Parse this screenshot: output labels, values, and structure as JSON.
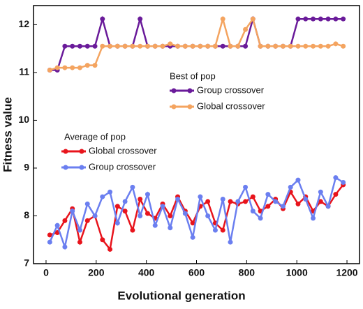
{
  "chart_data": {
    "type": "line",
    "x_label": "Evolutional generation",
    "y_label": "Fitness value",
    "x": [
      15,
      45,
      75,
      105,
      135,
      165,
      195,
      225,
      255,
      285,
      315,
      345,
      375,
      405,
      435,
      465,
      495,
      525,
      555,
      585,
      615,
      645,
      675,
      705,
      735,
      765,
      795,
      825,
      855,
      885,
      915,
      945,
      975,
      1005,
      1035,
      1065,
      1095,
      1125,
      1155,
      1185
    ],
    "legend_titles": [
      "Best of pop",
      "Average of pop"
    ],
    "series": [
      {
        "name": "Group crossover",
        "color": "#6a1b9a",
        "values": [
          11.05,
          11.05,
          11.55,
          11.55,
          11.55,
          11.55,
          11.55,
          12.12,
          11.55,
          11.55,
          11.55,
          11.55,
          12.12,
          11.55,
          11.55,
          11.55,
          11.55,
          11.55,
          11.55,
          11.55,
          11.55,
          11.55,
          11.55,
          11.55,
          11.55,
          11.55,
          11.55,
          12.12,
          11.55,
          11.55,
          11.55,
          11.55,
          11.55,
          12.12,
          12.12,
          12.12,
          12.12,
          12.12,
          12.12,
          12.12
        ]
      },
      {
        "name": "Global crossover",
        "color": "#f4a460",
        "values": [
          11.05,
          11.1,
          11.1,
          11.1,
          11.1,
          11.15,
          11.15,
          11.55,
          11.55,
          11.55,
          11.55,
          11.55,
          11.55,
          11.55,
          11.55,
          11.55,
          11.6,
          11.55,
          11.55,
          11.55,
          11.55,
          11.55,
          11.55,
          12.12,
          11.55,
          11.55,
          11.9,
          12.12,
          11.55,
          11.55,
          11.55,
          11.55,
          11.55,
          11.55,
          11.55,
          11.55,
          11.55,
          11.55,
          11.6,
          11.55
        ]
      },
      {
        "name": "Global crossover",
        "color": "#e8141c",
        "values": [
          7.6,
          7.65,
          7.9,
          8.15,
          7.45,
          7.9,
          8.0,
          7.5,
          7.3,
          8.2,
          8.1,
          7.7,
          8.35,
          8.05,
          7.95,
          8.25,
          8.0,
          8.4,
          8.1,
          7.85,
          8.2,
          8.3,
          7.85,
          7.7,
          8.3,
          8.25,
          8.3,
          8.4,
          8.1,
          8.2,
          8.35,
          8.15,
          8.5,
          8.25,
          8.4,
          8.1,
          8.3,
          8.2,
          8.45,
          8.65
        ]
      },
      {
        "name": "Group crossover",
        "color": "#6b7ff0",
        "values": [
          7.45,
          7.8,
          7.35,
          8.1,
          7.7,
          8.25,
          8.0,
          8.4,
          8.5,
          7.85,
          8.3,
          8.6,
          8.0,
          8.45,
          7.8,
          8.2,
          7.75,
          8.35,
          8.05,
          7.55,
          8.4,
          8.0,
          7.7,
          8.35,
          7.45,
          8.3,
          8.6,
          8.1,
          7.95,
          8.45,
          8.3,
          8.2,
          8.6,
          8.75,
          8.35,
          7.95,
          8.5,
          8.2,
          8.8,
          8.7
        ]
      }
    ],
    "xlim": [
      -50,
      1250
    ],
    "xticks": [
      0,
      200,
      400,
      600,
      800,
      1000,
      1200
    ],
    "ylim": [
      7,
      12.4
    ],
    "yticks": [
      7,
      8,
      9,
      10,
      11,
      12
    ]
  }
}
